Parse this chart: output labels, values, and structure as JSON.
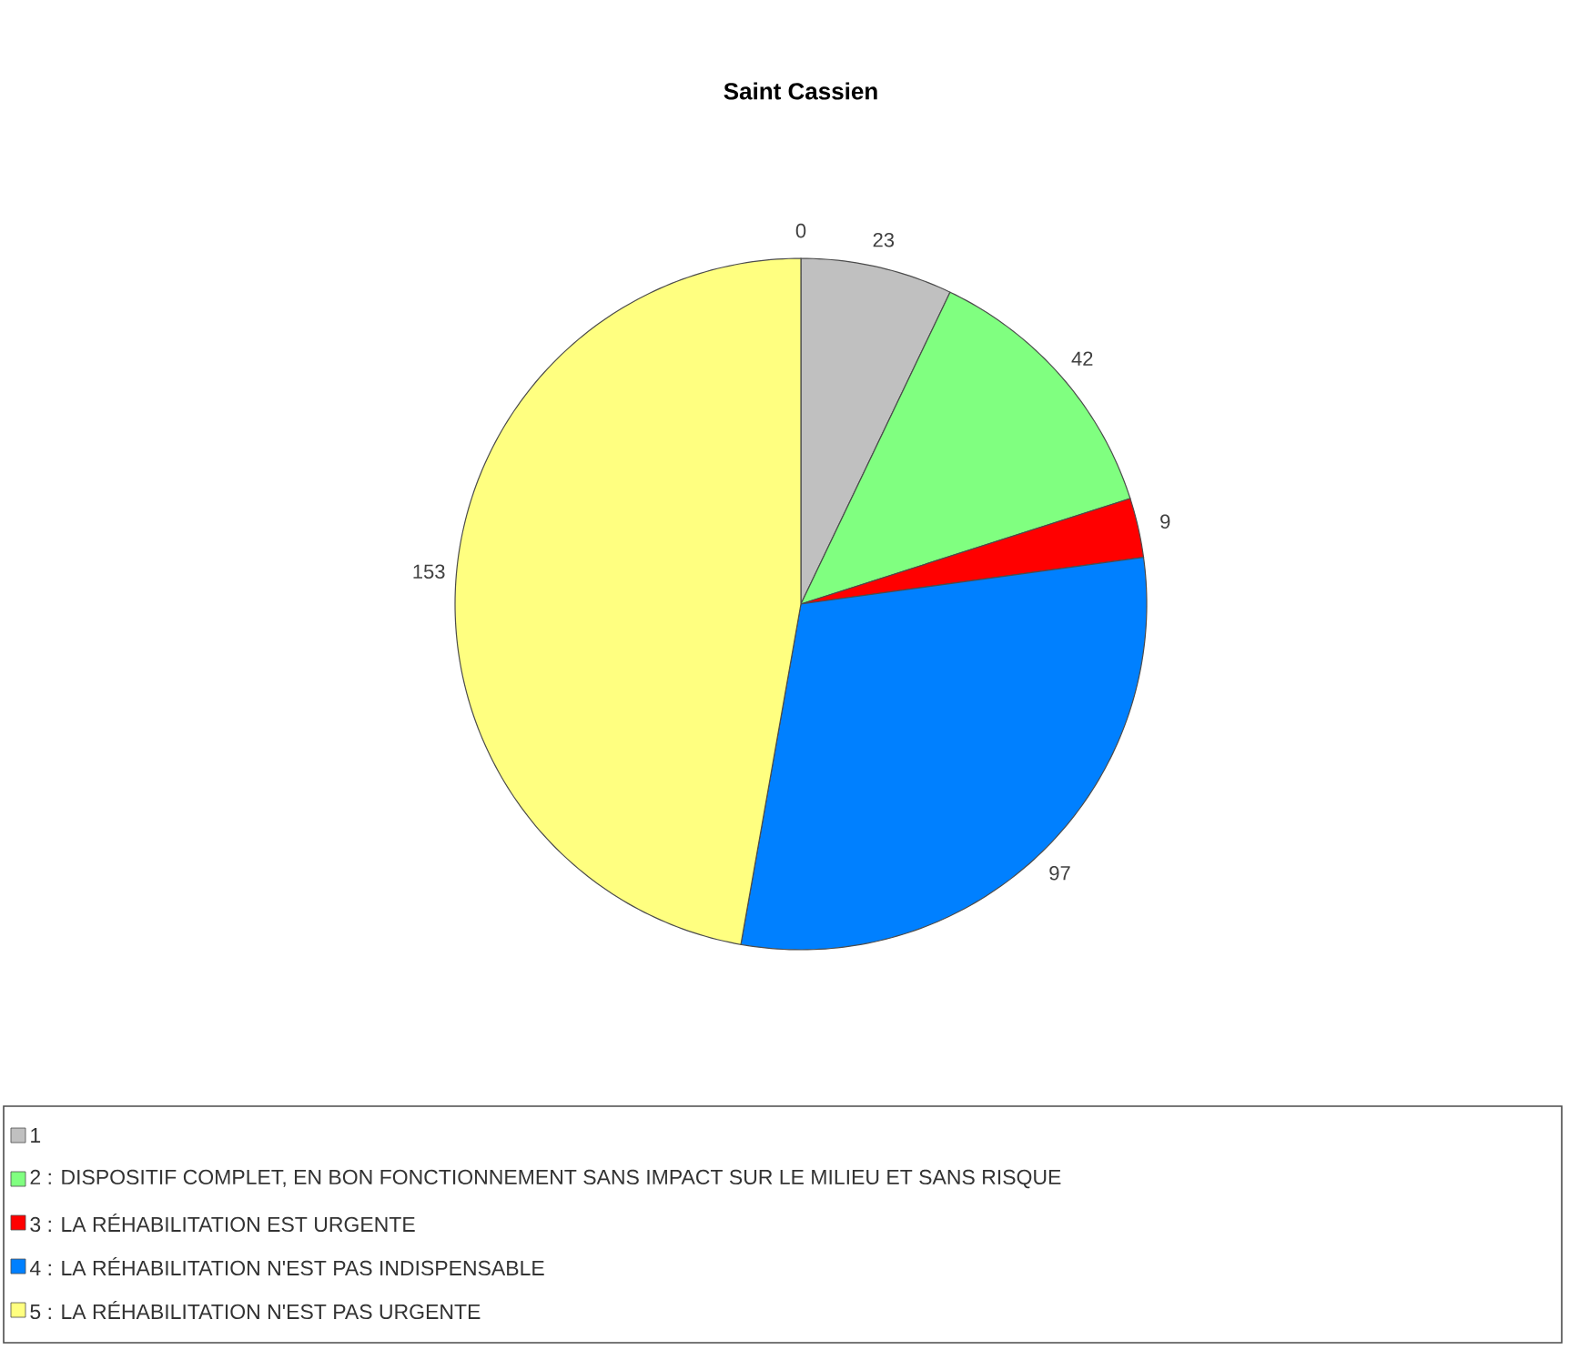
{
  "chart_data": {
    "type": "pie",
    "title": "Saint Cassien",
    "categories": [
      null,
      "1",
      "2 : DISPOSITIF COMPLET, EN BON FONCTIONNEMENT SANS IMPACT SUR LE MILIEU ET SANS RISQUE",
      "3 : LA RÉHABILITATION EST URGENTE",
      "4 : LA RÉHABILITATION N'EST PAS INDISPENSABLE",
      "5 : LA RÉHABILITATION N'EST PAS URGENTE"
    ],
    "values": [
      0,
      23,
      42,
      9,
      97,
      153
    ],
    "colors": [
      "#ffffff",
      "#c0c0c0",
      "#80ff80",
      "#ff0000",
      "#0080ff",
      "#ffff80"
    ],
    "value_labels": [
      "0",
      "23",
      "42",
      "9",
      "97",
      "153"
    ],
    "legend": "bottom"
  }
}
